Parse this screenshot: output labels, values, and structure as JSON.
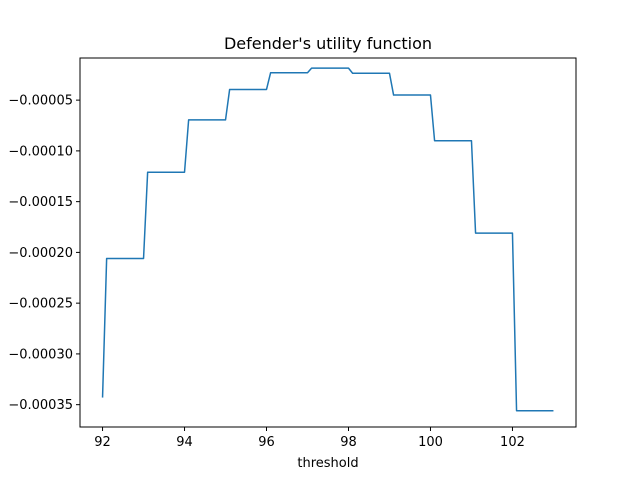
{
  "chart_data": {
    "type": "line",
    "title": "Defender's utility function",
    "xlabel": "threshold",
    "ylabel": "",
    "xlim": [
      91.45,
      103.55
    ],
    "ylim": [
      -0.000372,
      -8.5e-06
    ],
    "xticks": [
      92,
      94,
      96,
      98,
      100,
      102
    ],
    "xtick_labels": [
      "92",
      "94",
      "96",
      "98",
      "100",
      "102"
    ],
    "yticks": [
      -5e-05,
      -0.0001,
      -0.00015,
      -0.0002,
      -0.00025,
      -0.0003,
      -0.00035
    ],
    "ytick_labels": [
      "−0.00005",
      "−0.00010",
      "−0.00015",
      "−0.00020",
      "−0.00025",
      "−0.00030",
      "−0.00035"
    ],
    "grid": false,
    "series": [
      {
        "color": "#1f77b4",
        "x": [
          92.0,
          92.1,
          93.0,
          93.1,
          94.0,
          94.1,
          95.0,
          95.1,
          96.0,
          96.1,
          97.0,
          97.1,
          98.0,
          98.1,
          99.0,
          99.1,
          100.0,
          100.1,
          101.0,
          101.1,
          102.0,
          102.1,
          103.0
        ],
        "y": [
          -0.000343,
          -0.000206,
          -0.000206,
          -0.000121,
          -0.000121,
          -6.95e-05,
          -6.95e-05,
          -3.95e-05,
          -3.95e-05,
          -2.3e-05,
          -2.3e-05,
          -1.85e-05,
          -1.85e-05,
          -2.35e-05,
          -2.35e-05,
          -4.5e-05,
          -4.5e-05,
          -9e-05,
          -9e-05,
          -0.000181,
          -0.000181,
          -0.000356,
          -0.000356
        ]
      }
    ]
  }
}
